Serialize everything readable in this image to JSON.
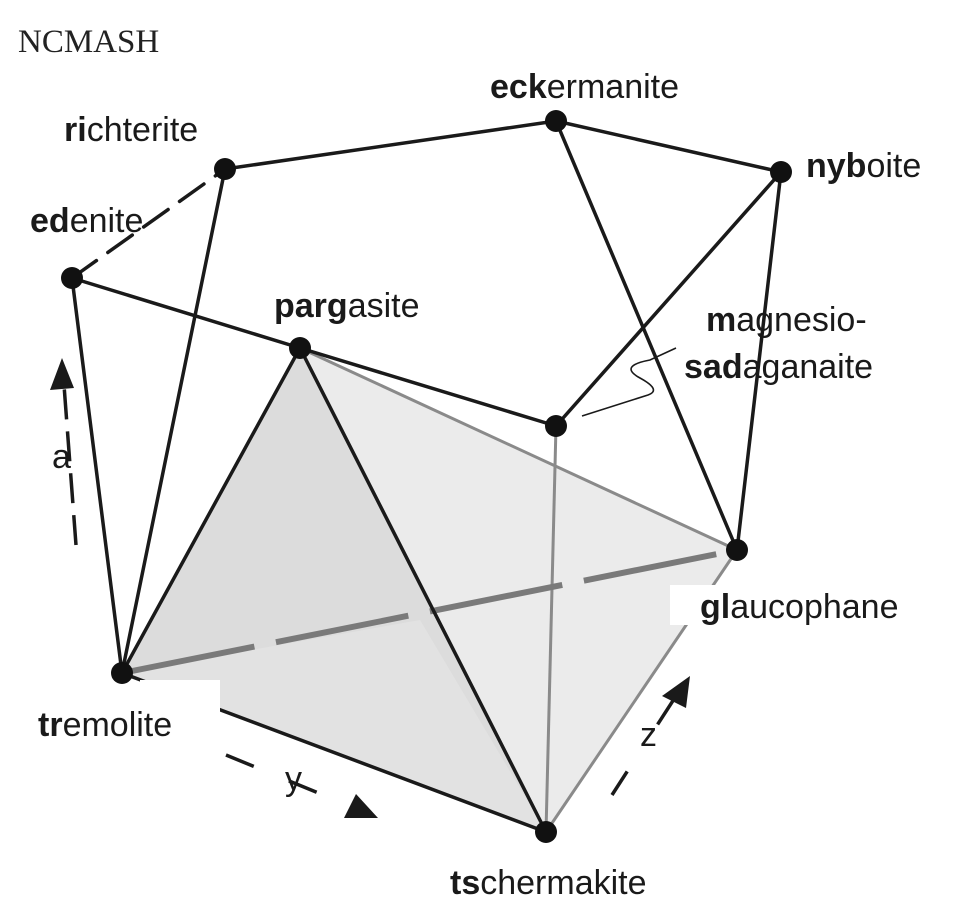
{
  "title": "NCMASH",
  "minerals": {
    "eckermanite": {
      "bold": "eck",
      "rest": "ermanite"
    },
    "richterite": {
      "bold": "ri",
      "rest": "chterite"
    },
    "nyboite": {
      "bold": "nyb",
      "rest": "oite"
    },
    "edenite": {
      "bold": "ed",
      "rest": "enite"
    },
    "pargasite": {
      "bold": "parg",
      "rest": "asite"
    },
    "magnesio_sadanagaite": {
      "line1_bold": "m",
      "line1_rest": "agnesio-",
      "line2_bold_a": "s",
      "line2_plain_a": "a",
      "line2_bold_b": "d",
      "line2_rest": "aganaite"
    },
    "glaucophane": {
      "bold": "gl",
      "rest": "aucophane"
    },
    "tremolite": {
      "bold": "tr",
      "rest": "emolite"
    },
    "tschermakite": {
      "bold": "ts",
      "rest": "chermakite"
    }
  },
  "axes": {
    "a": "a",
    "y": "y",
    "z": "z"
  },
  "colors": {
    "ink": "#1a1a1a",
    "face_dark": "#d9d9d9",
    "face_light": "#ececec",
    "grey_edge": "#8a8a8a"
  }
}
